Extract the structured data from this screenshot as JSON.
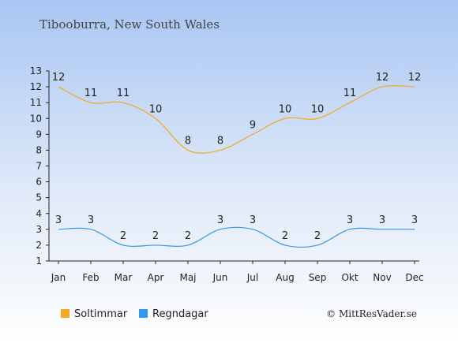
{
  "chart_data": {
    "type": "line",
    "title": "Tibooburra, New South Wales",
    "categories": [
      "Jan",
      "Feb",
      "Mar",
      "Apr",
      "Maj",
      "Jun",
      "Jul",
      "Aug",
      "Sep",
      "Okt",
      "Nov",
      "Dec"
    ],
    "series": [
      {
        "name": "Soltimmar",
        "color": "#f5a623",
        "values": [
          12,
          11,
          11,
          10,
          8,
          8,
          9,
          10,
          10,
          11,
          12,
          12
        ]
      },
      {
        "name": "Regndagar",
        "color": "#3399ee",
        "values": [
          3,
          3,
          2,
          2,
          2,
          3,
          3,
          2,
          2,
          3,
          3,
          3
        ]
      }
    ],
    "ylim": [
      1,
      13
    ],
    "yticks": [
      1,
      2,
      3,
      4,
      5,
      6,
      7,
      8,
      9,
      10,
      11,
      12,
      13
    ],
    "grid": false,
    "legend": "bottom-left",
    "credit": "© MittResVader.se"
  }
}
